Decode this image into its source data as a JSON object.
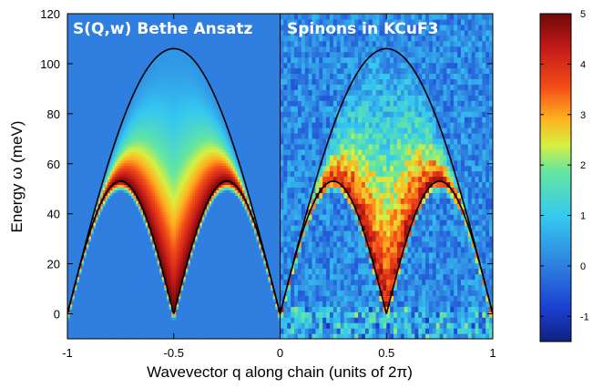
{
  "chart_data": {
    "type": "heatmap",
    "panels": [
      {
        "name": "S(Q,w) Bethe Ansatz",
        "x_range": [
          -1,
          0
        ]
      },
      {
        "name": "Spinons in KCuF3",
        "x_range": [
          0,
          1
        ]
      }
    ],
    "xlabel": "Wavevector q along chain (units of 2π)",
    "ylabel": "Energy ω (meV)",
    "xlim": [
      -1,
      1
    ],
    "ylim": [
      -10,
      120
    ],
    "x_ticks": [
      -1,
      -0.5,
      0,
      0.5,
      1
    ],
    "x_tick_labels": [
      "-1",
      "-0.5",
      "0",
      "0.5",
      "1"
    ],
    "y_ticks": [
      0,
      20,
      40,
      60,
      80,
      100,
      120
    ],
    "y_tick_labels": [
      "0",
      "20",
      "40",
      "60",
      "80",
      "100",
      "120"
    ],
    "colorbar": {
      "range": [
        -1.5,
        5
      ],
      "ticks": [
        -1,
        0,
        1,
        2,
        3,
        4,
        5
      ],
      "tick_labels": [
        "-1",
        "0",
        "1",
        "2",
        "3",
        "4",
        "5"
      ],
      "colormap": "jet"
    },
    "boundaries": {
      "upper": {
        "description": "two-spinon upper boundary",
        "peak_energy_meV": 106,
        "peak_q": 0.5,
        "function": "2*J_eff*|sin(pi*q/2)| style; 106 at q=±0.5, 0 at q=0,±1"
      },
      "lower": {
        "description": "des Cloizeaux-Pearson lower boundary",
        "peak_energy_meV": 53,
        "peak_q": [
          -0.75,
          -0.25,
          0.25,
          0.75
        ],
        "zeros_q": [
          -1,
          -0.5,
          0,
          0.5,
          1
        ]
      }
    },
    "legend": "none",
    "grid": false
  }
}
